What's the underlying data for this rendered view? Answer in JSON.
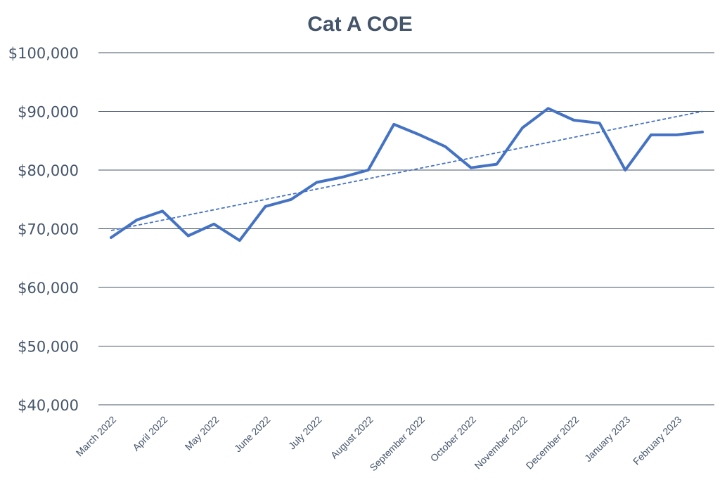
{
  "chart_data": {
    "type": "line",
    "title": "Cat A COE",
    "xlabel": "",
    "ylabel": "",
    "ylim": [
      40000,
      100000
    ],
    "y_ticks": [
      40000,
      50000,
      60000,
      70000,
      80000,
      90000,
      100000
    ],
    "y_tick_labels": [
      "$40,000",
      "$50,000",
      "$60,000",
      "$70,000",
      "$80,000",
      "$90,000",
      "$100,000"
    ],
    "x_tick_labels": [
      "March 2022",
      "April 2022",
      "May 2022",
      "June 2022",
      "July 2022",
      "August 2022",
      "September 2022",
      "October 2022",
      "November 2022",
      "December 2022",
      "January 2023",
      "February 2023"
    ],
    "grid": "horizontal",
    "legend": "none",
    "series": [
      {
        "values": [
          68500,
          71500,
          73000,
          68800,
          70800,
          68000,
          73800,
          75000,
          77900,
          78800,
          80000,
          87800,
          86000,
          84000,
          80400,
          81000,
          87200,
          90500,
          88500,
          88000,
          80000,
          86000,
          86000,
          86500
        ],
        "color": "#4472c4"
      }
    ],
    "trendline": {
      "style": "dashed",
      "linear": true,
      "start": 69700,
      "end": 90000,
      "color": "#4472c4"
    }
  }
}
